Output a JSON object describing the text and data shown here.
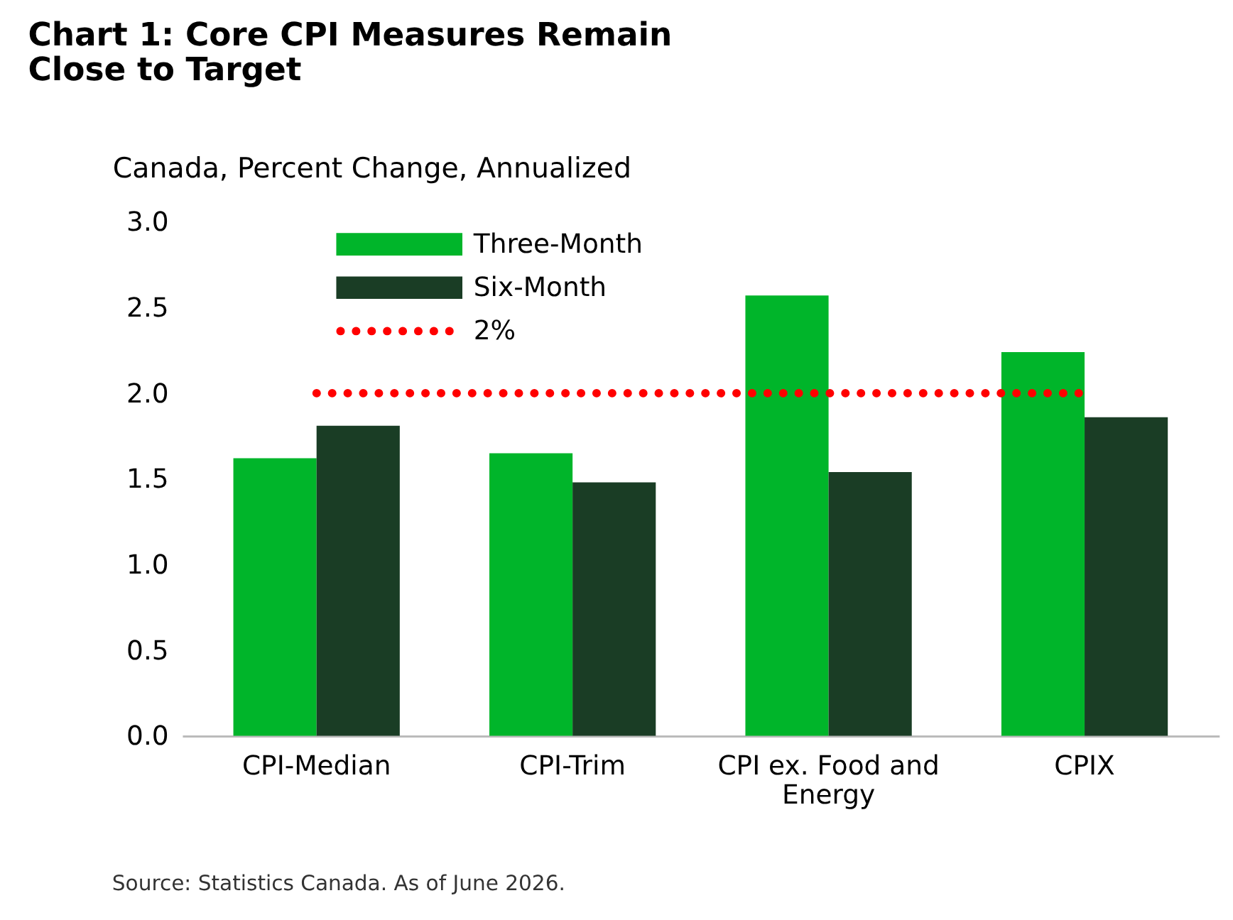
{
  "chart_data": {
    "type": "bar",
    "title": "Chart 1: Core CPI Measures Remain Close to Target",
    "ylabel": "Canada, Percent Change, Annualized",
    "categories": [
      "CPI-Median",
      "CPI-Trim",
      "CPI ex. Food and Energy",
      "CPIX"
    ],
    "series": [
      {
        "name": "Three-Month",
        "color": "#00b52a",
        "values": [
          1.62,
          1.65,
          2.57,
          2.24
        ]
      },
      {
        "name": "Six-Month",
        "color": "#1a3d25",
        "values": [
          1.81,
          1.48,
          1.54,
          1.86
        ]
      }
    ],
    "ylim": [
      0,
      3
    ],
    "yticks": [
      {
        "value": 0,
        "label": "0.0"
      },
      {
        "value": 0.5,
        "label": "0.5"
      },
      {
        "value": 1,
        "label": "1.0"
      },
      {
        "value": 1.5,
        "label": "1.5"
      },
      {
        "value": 2,
        "label": "2.0"
      },
      {
        "value": 2.5,
        "label": "2.5"
      },
      {
        "value": 3,
        "label": "3.0"
      }
    ],
    "ref_lines": [
      {
        "axis": "y",
        "value": 2,
        "label": "2%",
        "color": "#ff0000",
        "line_style": "dotted"
      }
    ],
    "grid": false,
    "legend": "top left",
    "annotations": [
      "Source: Statistics Canada. As of June 2026."
    ]
  }
}
